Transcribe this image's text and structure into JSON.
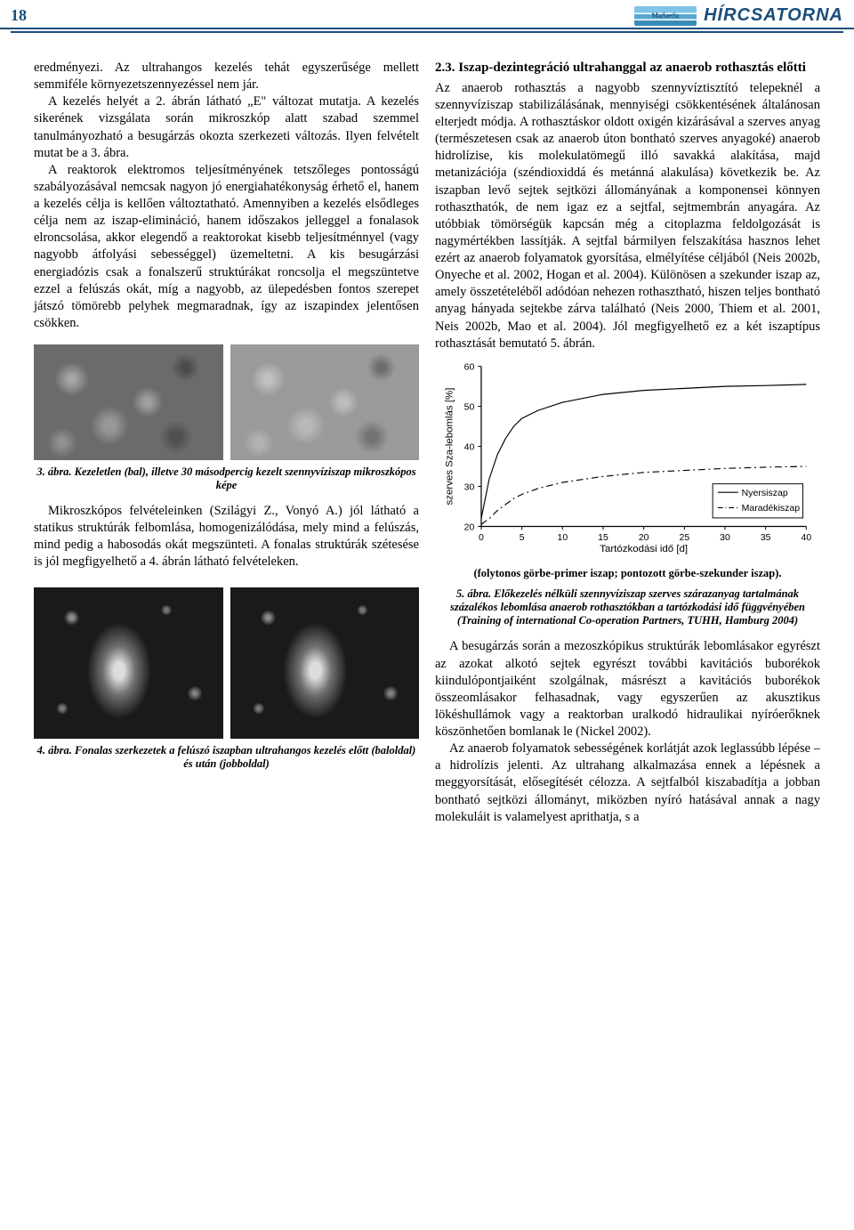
{
  "header": {
    "page_number": "18",
    "logo_text": "MaSzeSz",
    "brand_text": "HÍRCSATORNA"
  },
  "left_column": {
    "para1": "eredményezi. Az ultrahangos kezelés tehát egyszerűsége mellett semmiféle környezetszennyezéssel nem jár.",
    "para2": "A kezelés helyét a 2. ábrán látható „E\" változat mutatja. A kezelés sikerének vizsgálata során mikroszkóp alatt szabad szemmel tanulmányozható a besugárzás okozta szerkezeti változás. Ilyen felvételt mutat be a 3. ábra.",
    "para3": "A reaktorok elektromos teljesítményének tetszőleges pontosságú szabályozásával nemcsak nagyon jó energiahatékonyság érhető el, hanem a kezelés célja is kellően változtatható. Amennyiben a kezelés elsődleges célja nem az iszap-elimináció, hanem időszakos jelleggel a fonalasok elroncsolása, akkor elegendő a reaktorokat kisebb teljesítménnyel (vagy nagyobb átfolyási sebességgel) üzemeltetni. A kis besugárzási energiadózis csak a fonalszerű struktúrákat roncsolja el megszüntetve ezzel a felúszás okát, míg a nagyobb, az ülepedésben fontos szerepet játszó tömörebb pelyhek megmaradnak, így az iszapindex jelentősen csökken.",
    "fig3_caption": "3. ábra. Kezeletlen (bal), illetve 30 másodpercig kezelt szennyvíziszap mikroszkópos képe",
    "para4": "Mikroszkópos felvételeinken (Szilágyi Z., Vonyó A.) jól látható a statikus struktúrák felbomlása, homogenizálódása, mely mind a felúszás, mind pedig a habosodás okát megszünteti. A fonalas struktúrák szétesése is jól megfigyelhető a 4. ábrán látható felvételeken.",
    "fig4_caption": "4. ábra. Fonalas szerkezetek a felúszó iszapban ultrahangos kezelés előtt (baloldal) és után (jobboldal)"
  },
  "right_column": {
    "section_title": "2.3. Iszap-dezintegráció ultrahanggal az anaerob rothasztás előtti",
    "para1": "Az anaerob rothasztás a nagyobb szennyvíztisztító telepeknél a szennyvíziszap stabilizálásának, mennyiségi csökkentésének általánosan elterjedt módja. A rothasztáskor oldott oxigén kizárásával a szerves anyag (természetesen csak az anaerob úton bontható szerves anyagoké) anaerob hidrolízise, kis molekulatömegű illó savakká alakítása, majd metanizációja (széndioxiddá és metánná alakulása) következik be. Az iszapban levő sejtek sejtközi állományának a komponensei könnyen rothaszthatók, de nem igaz ez a sejtfal, sejtmembrán anyagára. Az utóbbiak tömörségük kapcsán még a citoplazma feldolgozását is nagymértékben lassítják. A sejtfal bármilyen felszakítása hasznos lehet ezért az anaerob folyamatok gyorsítása, elmélyítése céljából (Neis 2002b, Onyeche et al. 2002, Hogan et al. 2004). Különösen a szekunder iszap az, amely összetételéből adódóan nehezen rothasztható, hiszen teljes bontható anyag hányada sejtekbe zárva található (Neis 2000, Thiem et al. 2001, Neis 2002b, Mao et al. 2004). Jól megfigyelhető ez a két iszaptípus rothasztását bemutató 5. ábrán.",
    "chart_note": "(folytonos görbe-primer iszap; pontozott görbe-szekunder iszap).",
    "fig5_caption": "5. ábra. Előkezelés nélküli szennyvíziszap szerves szárazanyag tartalmának százalékos lebomlása anaerob rothasztókban a tartózkodási idő függvényében (Training of international Co-operation Partners, TUHH, Hamburg 2004)",
    "para2": "A besugárzás során a mezoszkópikus struktúrák lebomlásakor egyrészt az azokat alkotó sejtek egyrészt további kavitációs buborékok kiindulópontjaiként szolgálnak, másrészt a kavitációs buborékok összeomlásakor felhasadnak, vagy egyszerűen az akusztikus lökéshullámok vagy a reaktorban uralkodó hidraulikai nyíróerőknek köszönhetően bomlanak le (Nickel 2002).",
    "para3": "Az anaerob folyamatok sebességének korlátját azok leglassúbb lépése – a hidrolízis jelenti. Az ultrahang alkalmazása ennek a lépésnek a meggyorsítását, elősegítését célozza. A sejtfalból kiszabadítja a jobban bontható sejtközi állományt, miközben nyíró hatásával annak a nagy molekuláit is valamelyest aprithatja, s a"
  },
  "chart5": {
    "type": "line",
    "title": "",
    "xlabel": "Tartózkodási idő [d]",
    "ylabel": "szerves Sza-lebomlás [%]",
    "xlim": [
      0,
      40
    ],
    "ylim": [
      20,
      60
    ],
    "xtick_step": 5,
    "ytick_step": 10,
    "xticks": [
      0,
      5,
      10,
      15,
      20,
      25,
      30,
      35,
      40
    ],
    "yticks": [
      20,
      30,
      40,
      50,
      60
    ],
    "grid": false,
    "background_color": "#ffffff",
    "axis_color": "#000000",
    "label_fontsize": 12,
    "tick_fontsize": 11,
    "legend": {
      "position": "right",
      "items": [
        {
          "label": "Nyersiszap",
          "style": "solid",
          "color": "#000000"
        },
        {
          "label": "Maradékiszap",
          "style": "dash-dot",
          "color": "#000000"
        }
      ]
    },
    "series": [
      {
        "name": "Nyersiszap",
        "color": "#000000",
        "line_style": "solid",
        "line_width": 1.2,
        "x": [
          0,
          1,
          2,
          3,
          4,
          5,
          7,
          10,
          15,
          20,
          25,
          30,
          35,
          40
        ],
        "y": [
          22,
          32,
          38,
          42,
          45,
          47,
          49,
          51,
          53,
          54,
          54.5,
          55,
          55.2,
          55.5
        ]
      },
      {
        "name": "Maradékiszap",
        "color": "#000000",
        "line_style": "dash-dot",
        "line_width": 1.2,
        "x": [
          0,
          1,
          2,
          3,
          4,
          5,
          7,
          10,
          15,
          20,
          25,
          30,
          35,
          40
        ],
        "y": [
          20.5,
          22,
          24,
          25.5,
          27,
          28,
          29.5,
          31,
          32.5,
          33.5,
          34,
          34.5,
          34.8,
          35
        ]
      }
    ]
  }
}
